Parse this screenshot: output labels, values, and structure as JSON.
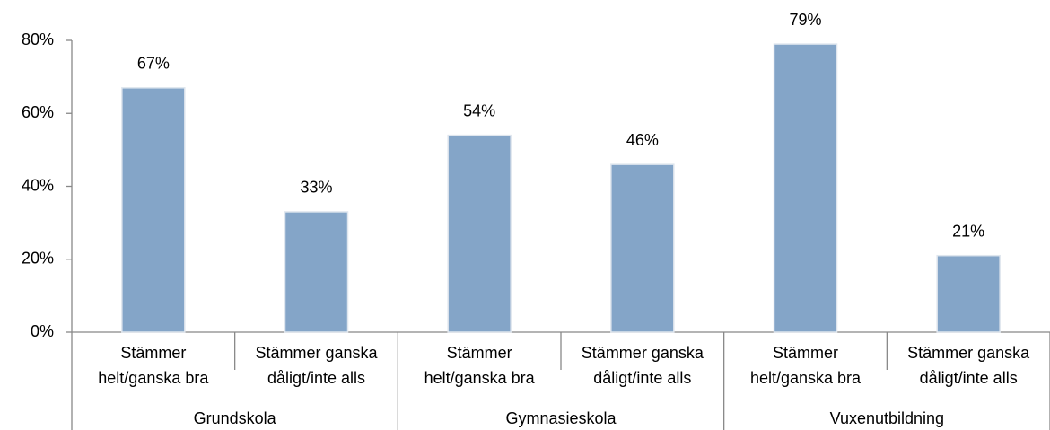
{
  "chart_data": {
    "type": "bar",
    "categories": [
      [
        "Stämmer",
        "helt/ganska bra"
      ],
      [
        "Stämmer ganska",
        "dåligt/inte alls"
      ],
      [
        "Stämmer",
        "helt/ganska bra"
      ],
      [
        "Stämmer ganska",
        "dåligt/inte alls"
      ],
      [
        "Stämmer",
        "helt/ganska bra"
      ],
      [
        "Stämmer ganska",
        "dåligt/inte alls"
      ]
    ],
    "groups": [
      "Grundskola",
      "Gymnasieskola",
      "Vuxenutbildning"
    ],
    "values": [
      67,
      33,
      54,
      46,
      79,
      21
    ],
    "value_labels": [
      "67%",
      "33%",
      "54%",
      "46%",
      "79%",
      "21%"
    ],
    "color": "#84a5c8",
    "ylim": [
      0,
      80
    ],
    "yticks": [
      {
        "value": 0,
        "label": "0%"
      },
      {
        "value": 20,
        "label": "20%"
      },
      {
        "value": 40,
        "label": "40%"
      },
      {
        "value": 60,
        "label": "60%"
      },
      {
        "value": 80,
        "label": "80%"
      }
    ]
  }
}
